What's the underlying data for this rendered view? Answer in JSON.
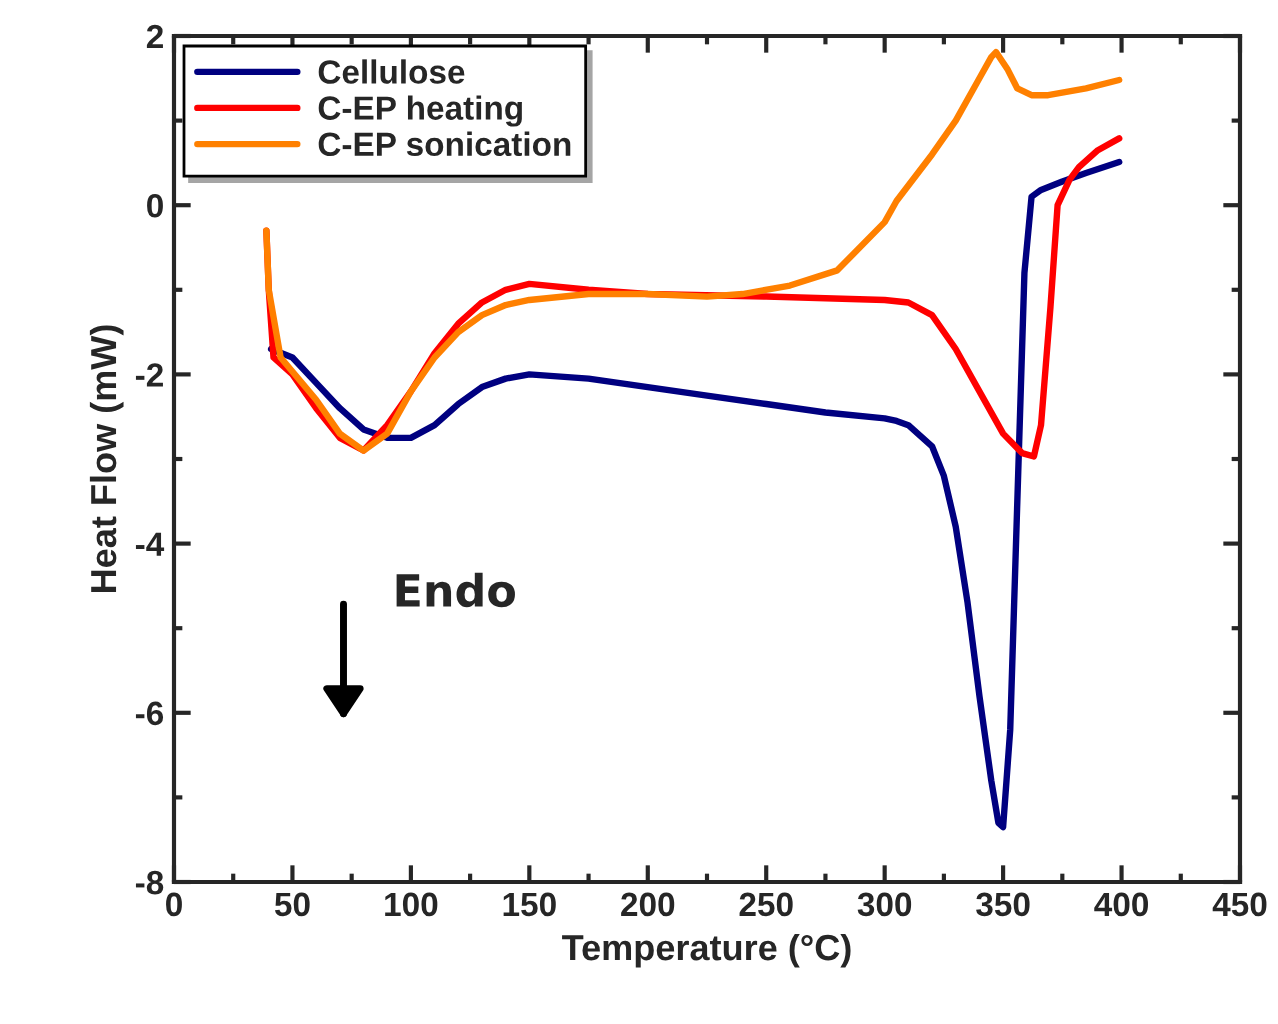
{
  "chart_data": {
    "type": "line",
    "xlabel": "Temperature (°C)",
    "ylabel": "Heat Flow (mW)",
    "xlim": [
      0,
      450
    ],
    "xticks": [
      0,
      50,
      100,
      150,
      200,
      250,
      300,
      350,
      400,
      450
    ],
    "ylim": [
      -8,
      2
    ],
    "yticks": [
      -8,
      -6,
      -4,
      -2,
      0,
      2
    ],
    "legend": "top left",
    "grid": false,
    "marker": "none",
    "line_style": "solid",
    "annotations": [
      "Endo"
    ],
    "series": [
      {
        "name": "Cellulose",
        "color": "#000080",
        "x": [
          41,
          50,
          60,
          70,
          80,
          90,
          100,
          110,
          120,
          130,
          140,
          150,
          175,
          200,
          225,
          250,
          275,
          300,
          305,
          310,
          320,
          325,
          330,
          335,
          340,
          345,
          348,
          350,
          353,
          356,
          359,
          362,
          366,
          375,
          385,
          399
        ],
        "values": [
          -1.7,
          -1.8,
          -2.1,
          -2.4,
          -2.65,
          -2.75,
          -2.75,
          -2.6,
          -2.35,
          -2.15,
          -2.05,
          -2.0,
          -2.05,
          -2.15,
          -2.25,
          -2.35,
          -2.45,
          -2.52,
          -2.55,
          -2.6,
          -2.85,
          -3.2,
          -3.8,
          -4.7,
          -5.8,
          -6.8,
          -7.3,
          -7.35,
          -6.2,
          -3.5,
          -0.8,
          0.1,
          0.18,
          0.28,
          0.38,
          0.51
        ]
      },
      {
        "name": "C-EP heating",
        "color": "#ff0000",
        "x": [
          39,
          40,
          42,
          50,
          60,
          70,
          80,
          90,
          100,
          110,
          120,
          130,
          140,
          150,
          175,
          200,
          250,
          300,
          310,
          320,
          330,
          340,
          350,
          358,
          363,
          366,
          370,
          373,
          378,
          382,
          390,
          399
        ],
        "values": [
          -0.3,
          -1.0,
          -1.8,
          -2.0,
          -2.4,
          -2.75,
          -2.9,
          -2.6,
          -2.2,
          -1.75,
          -1.4,
          -1.15,
          -1.0,
          -0.93,
          -1.0,
          -1.05,
          -1.08,
          -1.12,
          -1.15,
          -1.3,
          -1.7,
          -2.2,
          -2.7,
          -2.93,
          -2.97,
          -2.6,
          -1.2,
          0.0,
          0.3,
          0.45,
          0.65,
          0.79
        ]
      },
      {
        "name": "C-EP sonication",
        "color": "#ff8000",
        "x": [
          39,
          40,
          45,
          60,
          70,
          80,
          90,
          100,
          110,
          120,
          130,
          140,
          150,
          175,
          200,
          225,
          240,
          260,
          280,
          300,
          305,
          320,
          330,
          340,
          345,
          347,
          352,
          356,
          362,
          369,
          385,
          399
        ],
        "values": [
          -0.3,
          -1.0,
          -1.8,
          -2.3,
          -2.7,
          -2.9,
          -2.7,
          -2.2,
          -1.8,
          -1.5,
          -1.3,
          -1.18,
          -1.12,
          -1.05,
          -1.05,
          -1.08,
          -1.05,
          -0.95,
          -0.77,
          -0.2,
          0.05,
          0.6,
          1.0,
          1.5,
          1.75,
          1.81,
          1.6,
          1.38,
          1.3,
          1.3,
          1.38,
          1.48
        ]
      }
    ]
  }
}
